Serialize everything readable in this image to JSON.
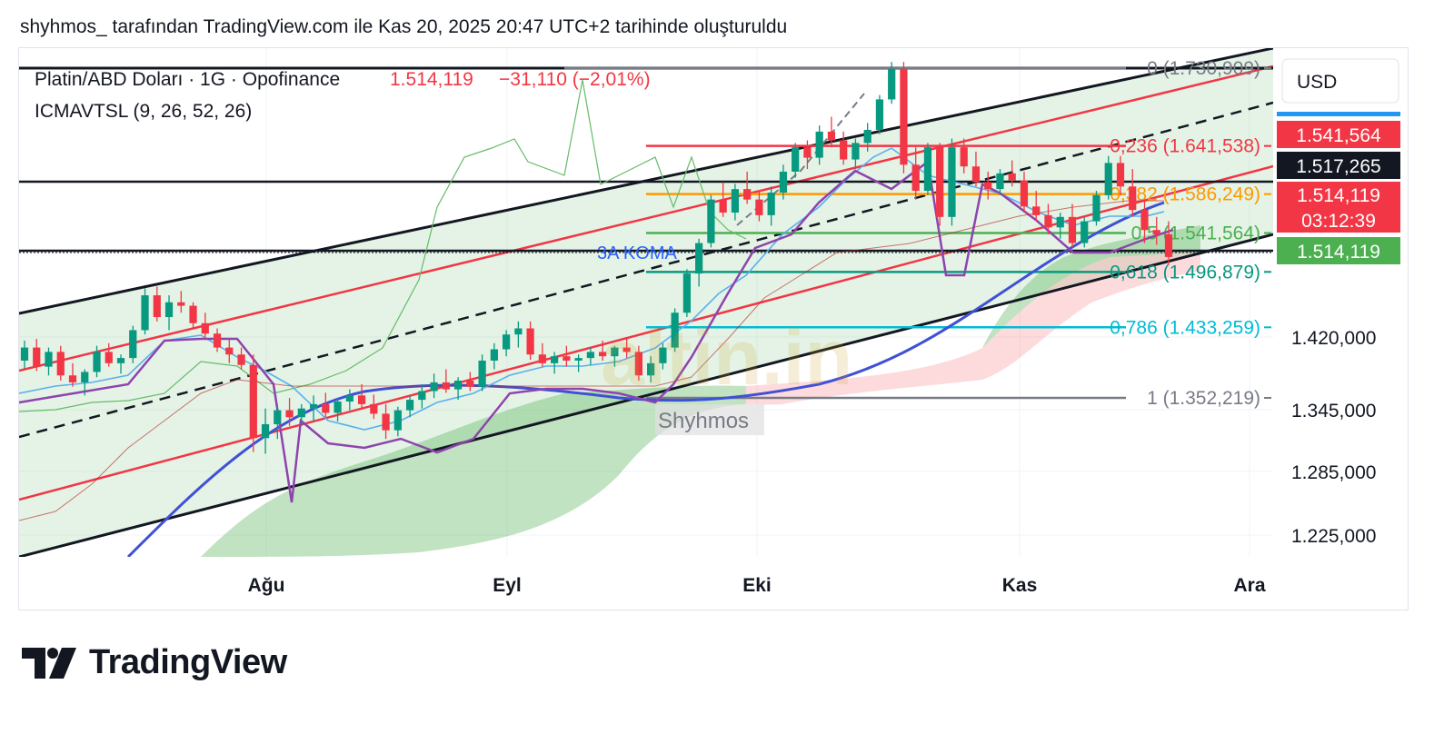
{
  "header": {
    "caption": "shyhmos_ tarafından TradingView.com ile Kas 20, 2025 20:47 UTC+2 tarihinde oluşturuldu"
  },
  "legend": {
    "symbol": "Platin/ABD Doları · 1G · Opofinance",
    "last": "1.514,119",
    "change": "−31,110 (−2,01%)",
    "indicator": "ICMAVTSL (9, 26, 52, 26)"
  },
  "currency": "USD",
  "watermark": {
    "logo": "altin.in",
    "author": "Shyhmos"
  },
  "drawing": {
    "koma": "3A KOMA"
  },
  "fib_labels": [
    {
      "text": "0 (1.730,909)",
      "color": "#787b86"
    },
    {
      "text": "0,236 (1.641,538)",
      "color": "#f23645"
    },
    {
      "text": "0,382 (1.586,249)",
      "color": "#ff9800"
    },
    {
      "text": "0,5 (1.541,564)",
      "color": "#4caf50"
    },
    {
      "text": "0,618 (1.496,879)",
      "color": "#089981"
    },
    {
      "text": "0,786 (1.433,259)",
      "color": "#00bcd4"
    },
    {
      "text": "1 (1.352,219)",
      "color": "#787b86"
    }
  ],
  "price_badges": [
    {
      "text": "1.541,564",
      "bg": "#f23645"
    },
    {
      "text": "1.517,265",
      "bg": "#131722"
    },
    {
      "text": "1.514,119",
      "bg": "#f23645"
    },
    {
      "text": "03:12:39",
      "bg": "#f23645"
    },
    {
      "text": "1.514,119",
      "bg": "#4caf50"
    }
  ],
  "footer": {
    "brand": "TradingView"
  },
  "chart_data": {
    "type": "candlestick",
    "y_ticks": [
      "1.420,000",
      "1.345,000",
      "1.285,000",
      "1.225,000"
    ],
    "x_ticks": [
      "Ağu",
      "Eyl",
      "Eki",
      "Kas",
      "Ara"
    ],
    "fib_levels": [
      1730.909,
      1641.538,
      1586.249,
      1541.564,
      1496.879,
      1433.259,
      1352.219
    ],
    "ohlc": [
      [
        1395,
        1418,
        1386,
        1410
      ],
      [
        1410,
        1420,
        1383,
        1388
      ],
      [
        1388,
        1410,
        1378,
        1405
      ],
      [
        1405,
        1412,
        1372,
        1378
      ],
      [
        1378,
        1392,
        1365,
        1370
      ],
      [
        1370,
        1385,
        1355,
        1382
      ],
      [
        1382,
        1412,
        1376,
        1405
      ],
      [
        1405,
        1415,
        1388,
        1392
      ],
      [
        1392,
        1402,
        1380,
        1398
      ],
      [
        1398,
        1435,
        1392,
        1430
      ],
      [
        1430,
        1478,
        1425,
        1470
      ],
      [
        1470,
        1480,
        1440,
        1445
      ],
      [
        1445,
        1470,
        1430,
        1462
      ],
      [
        1462,
        1475,
        1450,
        1458
      ],
      [
        1458,
        1462,
        1432,
        1438
      ],
      [
        1438,
        1450,
        1420,
        1426
      ],
      [
        1426,
        1432,
        1405,
        1410
      ],
      [
        1410,
        1420,
        1392,
        1402
      ],
      [
        1402,
        1410,
        1385,
        1390
      ],
      [
        1390,
        1402,
        1290,
        1306
      ],
      [
        1306,
        1340,
        1288,
        1322
      ],
      [
        1322,
        1345,
        1305,
        1338
      ],
      [
        1338,
        1352,
        1320,
        1330
      ],
      [
        1330,
        1345,
        1320,
        1340
      ],
      [
        1340,
        1355,
        1325,
        1345
      ],
      [
        1345,
        1358,
        1330,
        1335
      ],
      [
        1335,
        1352,
        1325,
        1348
      ],
      [
        1348,
        1362,
        1338,
        1355
      ],
      [
        1355,
        1368,
        1340,
        1345
      ],
      [
        1345,
        1356,
        1328,
        1334
      ],
      [
        1334,
        1345,
        1305,
        1315
      ],
      [
        1315,
        1342,
        1308,
        1338
      ],
      [
        1338,
        1355,
        1330,
        1350
      ],
      [
        1350,
        1368,
        1340,
        1360
      ],
      [
        1360,
        1380,
        1352,
        1370
      ],
      [
        1370,
        1385,
        1358,
        1362
      ],
      [
        1362,
        1376,
        1350,
        1372
      ],
      [
        1372,
        1382,
        1360,
        1365
      ],
      [
        1365,
        1402,
        1360,
        1395
      ],
      [
        1395,
        1415,
        1385,
        1408
      ],
      [
        1408,
        1430,
        1400,
        1425
      ],
      [
        1425,
        1440,
        1410,
        1432
      ],
      [
        1432,
        1440,
        1396,
        1402
      ],
      [
        1402,
        1415,
        1388,
        1392
      ],
      [
        1392,
        1405,
        1380,
        1400
      ],
      [
        1400,
        1412,
        1388,
        1395
      ],
      [
        1395,
        1402,
        1382,
        1398
      ],
      [
        1398,
        1410,
        1390,
        1405
      ],
      [
        1405,
        1418,
        1395,
        1400
      ],
      [
        1400,
        1412,
        1388,
        1410
      ],
      [
        1410,
        1420,
        1398,
        1405
      ],
      [
        1405,
        1412,
        1372,
        1378
      ],
      [
        1378,
        1400,
        1370,
        1392
      ],
      [
        1392,
        1415,
        1385,
        1410
      ],
      [
        1410,
        1455,
        1405,
        1450
      ],
      [
        1450,
        1500,
        1445,
        1495
      ],
      [
        1495,
        1535,
        1480,
        1530
      ],
      [
        1530,
        1585,
        1525,
        1580
      ],
      [
        1580,
        1600,
        1560,
        1565
      ],
      [
        1565,
        1598,
        1556,
        1592
      ],
      [
        1592,
        1612,
        1575,
        1580
      ],
      [
        1580,
        1590,
        1555,
        1562
      ],
      [
        1562,
        1595,
        1550,
        1588
      ],
      [
        1588,
        1620,
        1580,
        1612
      ],
      [
        1612,
        1645,
        1605,
        1640
      ],
      [
        1640,
        1648,
        1615,
        1628
      ],
      [
        1628,
        1665,
        1620,
        1658
      ],
      [
        1658,
        1675,
        1640,
        1648
      ],
      [
        1648,
        1658,
        1620,
        1626
      ],
      [
        1626,
        1650,
        1615,
        1645
      ],
      [
        1645,
        1668,
        1635,
        1660
      ],
      [
        1660,
        1700,
        1655,
        1695
      ],
      [
        1695,
        1738,
        1690,
        1730
      ],
      [
        1730,
        1738,
        1610,
        1620
      ],
      [
        1620,
        1640,
        1580,
        1590
      ],
      [
        1590,
        1645,
        1585,
        1640
      ],
      [
        1640,
        1645,
        1550,
        1560
      ],
      [
        1560,
        1650,
        1550,
        1640
      ],
      [
        1640,
        1650,
        1610,
        1618
      ],
      [
        1618,
        1635,
        1595,
        1600
      ],
      [
        1600,
        1612,
        1580,
        1592
      ],
      [
        1592,
        1615,
        1585,
        1610
      ],
      [
        1610,
        1625,
        1595,
        1602
      ],
      [
        1602,
        1612,
        1565,
        1572
      ],
      [
        1572,
        1590,
        1555,
        1562
      ],
      [
        1562,
        1575,
        1540,
        1548
      ],
      [
        1548,
        1565,
        1535,
        1560
      ],
      [
        1560,
        1575,
        1525,
        1530
      ],
      [
        1530,
        1560,
        1525,
        1555
      ],
      [
        1555,
        1590,
        1550,
        1585
      ],
      [
        1585,
        1630,
        1580,
        1622
      ],
      [
        1622,
        1630,
        1585,
        1595
      ],
      [
        1595,
        1615,
        1560,
        1568
      ],
      [
        1568,
        1580,
        1530,
        1545
      ],
      [
        1545,
        1560,
        1528,
        1540
      ],
      [
        1540,
        1555,
        1505,
        1514
      ]
    ]
  }
}
